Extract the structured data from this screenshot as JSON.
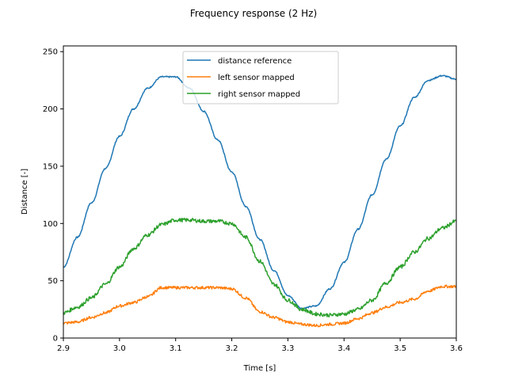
{
  "chart_data": {
    "type": "line",
    "title": "Frequency response (2 Hz)",
    "xlabel": "Time [s]",
    "ylabel": "Distance [-]",
    "xlim": [
      2.9,
      3.6
    ],
    "ylim": [
      0,
      255
    ],
    "xticks": [
      "2.9",
      "3.0",
      "3.1",
      "3.2",
      "3.3",
      "3.4",
      "3.5",
      "3.6"
    ],
    "yticks": [
      "0",
      "50",
      "100",
      "150",
      "200",
      "250"
    ],
    "grid": false,
    "legend_position": "upper-center",
    "series": [
      {
        "name": "distance reference",
        "color": "#1f77b4",
        "x": [
          2.9,
          2.925,
          2.95,
          2.975,
          3.0,
          3.025,
          3.05,
          3.075,
          3.1,
          3.125,
          3.15,
          3.175,
          3.2,
          3.225,
          3.25,
          3.275,
          3.3,
          3.325,
          3.35,
          3.375,
          3.4,
          3.425,
          3.45,
          3.475,
          3.5,
          3.525,
          3.55,
          3.575,
          3.6
        ],
        "y": [
          62,
          88,
          118,
          148,
          176,
          200,
          218,
          228,
          228,
          218,
          198,
          173,
          145,
          115,
          86,
          59,
          37,
          26,
          28,
          43,
          66,
          95,
          125,
          156,
          185,
          210,
          225,
          229,
          226
        ]
      },
      {
        "name": "left sensor mapped",
        "color": "#ff7f0e",
        "x": [
          2.9,
          2.925,
          2.95,
          2.975,
          3.0,
          3.025,
          3.05,
          3.075,
          3.1,
          3.125,
          3.15,
          3.175,
          3.2,
          3.225,
          3.25,
          3.275,
          3.3,
          3.325,
          3.35,
          3.375,
          3.4,
          3.425,
          3.45,
          3.475,
          3.5,
          3.525,
          3.55,
          3.575,
          3.6
        ],
        "y": [
          13,
          14,
          18,
          22,
          28,
          31,
          36,
          44,
          44,
          44,
          44,
          44,
          43,
          35,
          23,
          18,
          14,
          12,
          11,
          12,
          13,
          17,
          22,
          27,
          31,
          34,
          41,
          45,
          45
        ]
      },
      {
        "name": "right sensor mapped",
        "color": "#2ca02c",
        "x": [
          2.9,
          2.925,
          2.95,
          2.975,
          3.0,
          3.025,
          3.05,
          3.075,
          3.1,
          3.125,
          3.15,
          3.175,
          3.2,
          3.225,
          3.25,
          3.275,
          3.3,
          3.325,
          3.35,
          3.375,
          3.4,
          3.425,
          3.45,
          3.475,
          3.5,
          3.525,
          3.55,
          3.575,
          3.6
        ],
        "y": [
          22,
          27,
          35,
          47,
          62,
          78,
          90,
          99,
          103,
          103,
          102,
          102,
          100,
          88,
          67,
          47,
          33,
          25,
          21,
          20,
          21,
          25,
          33,
          48,
          62,
          75,
          87,
          96,
          102
        ]
      }
    ]
  }
}
